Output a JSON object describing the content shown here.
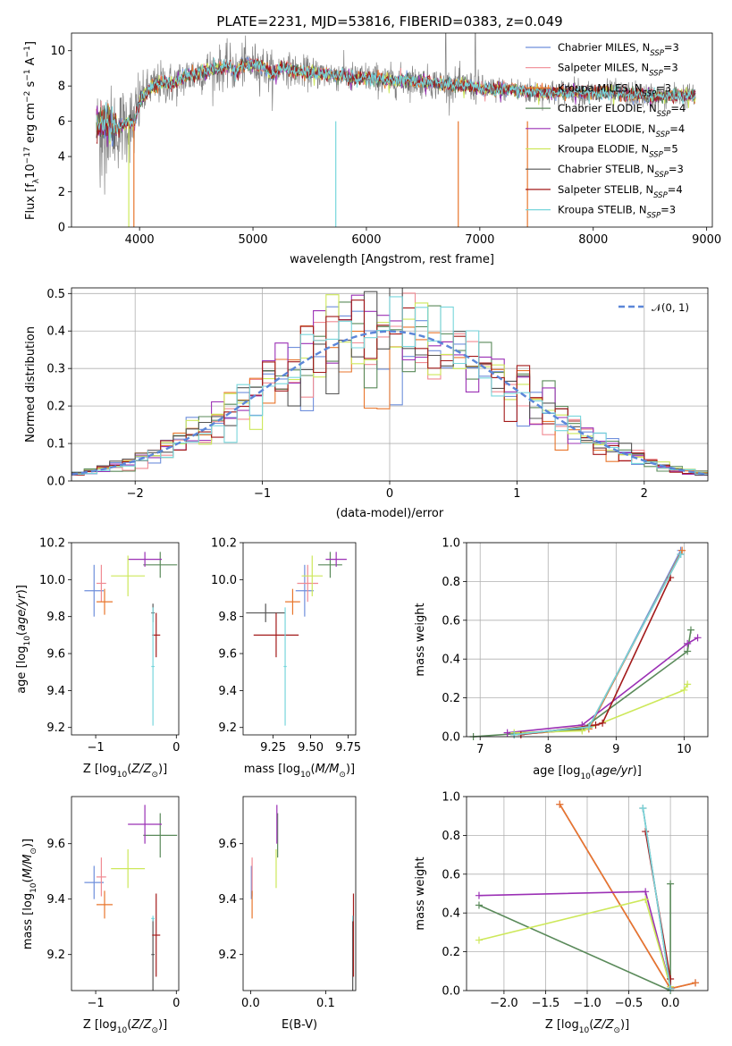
{
  "figure_title": "PLATE=2231, MJD=53816, FIBERID=0383, z=0.049",
  "model_colors": {
    "Chabrier MILES": "#6f8fdc",
    "Salpeter MILES": "#f08a92",
    "Kroupa MILES": "#e8762c",
    "Chabrier ELODIE": "#5a8a5a",
    "Salpeter ELODIE": "#9b30b5",
    "Kroupa ELODIE": "#cde85a",
    "Chabrier STELIB": "#555555",
    "Salpeter STELIB": "#a31a1a",
    "Kroupa STELIB": "#78d6dc",
    "Data spectrum": "#808080"
  },
  "chart_data": [
    {
      "id": "spectrum",
      "type": "line",
      "title": "PLATE=2231, MJD=53816, FIBERID=0383, z=0.049",
      "xlabel": "wavelength [Angstrom, rest frame]",
      "ylabel": "Flux [f_λ 10^-17 erg cm^-2 s^-1 A^-1]",
      "xlim": [
        3400,
        9050
      ],
      "ylim": [
        0,
        11
      ],
      "xticks": [
        4000,
        5000,
        6000,
        7000,
        8000,
        9000
      ],
      "yticks": [
        0,
        2,
        4,
        6,
        8,
        10
      ],
      "grid": false,
      "legend_position": "top-right",
      "legend": [
        {
          "label": "Chabrier MILES, N",
          "sub": "SSP",
          "tail": "=3"
        },
        {
          "label": "Salpeter MILES, N",
          "sub": "SSP",
          "tail": "=3"
        },
        {
          "label": "Kroupa MILES, N",
          "sub": "SSP",
          "tail": "=3"
        },
        {
          "label": "Chabrier ELODIE, N",
          "sub": "SSP",
          "tail": "=4"
        },
        {
          "label": "Salpeter ELODIE, N",
          "sub": "SSP",
          "tail": "=4"
        },
        {
          "label": "Kroupa ELODIE, N",
          "sub": "SSP",
          "tail": "=5"
        },
        {
          "label": "Chabrier STELIB, N",
          "sub": "SSP",
          "tail": "=3"
        },
        {
          "label": "Salpeter STELIB, N",
          "sub": "SSP",
          "tail": "=4"
        },
        {
          "label": "Kroupa STELIB, N",
          "sub": "SSP",
          "tail": "=3"
        }
      ],
      "continuum_points": [
        [
          3620,
          5.7
        ],
        [
          3700,
          6.0
        ],
        [
          3800,
          5.5
        ],
        [
          3900,
          6.0
        ],
        [
          3950,
          5.8
        ],
        [
          4000,
          7.2
        ],
        [
          4100,
          7.9
        ],
        [
          4200,
          8.2
        ],
        [
          4300,
          8.1
        ],
        [
          4400,
          8.5
        ],
        [
          4500,
          8.7
        ],
        [
          4600,
          8.9
        ],
        [
          4700,
          9.0
        ],
        [
          4800,
          9.1
        ],
        [
          4860,
          8.7
        ],
        [
          4900,
          9.2
        ],
        [
          5000,
          9.2
        ],
        [
          5100,
          9.1
        ],
        [
          5175,
          8.6
        ],
        [
          5250,
          9.1
        ],
        [
          5400,
          8.8
        ],
        [
          5600,
          8.7
        ],
        [
          5800,
          8.6
        ],
        [
          5900,
          8.4
        ],
        [
          6000,
          8.5
        ],
        [
          6200,
          8.3
        ],
        [
          6400,
          8.3
        ],
        [
          6563,
          8.2
        ],
        [
          6700,
          8.1
        ],
        [
          6900,
          8.0
        ],
        [
          7100,
          7.8
        ],
        [
          7300,
          7.8
        ],
        [
          7400,
          7.7
        ],
        [
          7600,
          7.6
        ],
        [
          7800,
          7.7
        ],
        [
          8000,
          7.6
        ],
        [
          8200,
          7.6
        ],
        [
          8400,
          7.5
        ],
        [
          8600,
          7.4
        ],
        [
          8800,
          7.5
        ],
        [
          8900,
          7.4
        ]
      ],
      "model_range_angstrom": [
        3620,
        8900
      ],
      "data_range_angstrom": [
        3620,
        8900
      ]
    },
    {
      "id": "residuals",
      "type": "line",
      "xlabel": "(data-model)/error",
      "ylabel": "Normed distribution",
      "xlim": [
        -2.5,
        2.5
      ],
      "ylim": [
        0,
        0.515
      ],
      "xticks": [
        -2,
        -1,
        0,
        1,
        2
      ],
      "yticks": [
        0.0,
        0.1,
        0.2,
        0.3,
        0.4,
        0.5
      ],
      "grid": true,
      "legend_position": "top-right",
      "legend": [
        {
          "label": "𝒩(0, 1)",
          "style": "dashed",
          "color": "#5b86d8"
        }
      ],
      "histogram_bin_edges_range": [
        -2.5,
        2.5
      ],
      "histogram_bin_width": 0.1,
      "reference_curve": "normal(0,1)"
    },
    {
      "id": "age-vs-Z",
      "type": "scatter",
      "xlabel": "Z [log10(Z/Z⊙)]",
      "ylabel": "age [log10(age/yr)]",
      "xlim": [
        -1.3,
        0.03
      ],
      "ylim": [
        9.16,
        10.2
      ],
      "xticks": [
        -1,
        0
      ],
      "yticks": [
        9.2,
        9.4,
        9.6,
        9.8,
        10.0,
        10.2
      ],
      "points": [
        {
          "model": "Chabrier MILES",
          "x": -1.02,
          "xerr": 0.12,
          "y": 9.94,
          "yerr": 0.14
        },
        {
          "model": "Salpeter MILES",
          "x": -0.93,
          "xerr": 0.06,
          "y": 9.98,
          "yerr": 0.1
        },
        {
          "model": "Kroupa MILES",
          "x": -0.89,
          "xerr": 0.1,
          "y": 9.88,
          "yerr": 0.07
        },
        {
          "model": "Chabrier ELODIE",
          "x": -0.2,
          "xerr": 0.21,
          "y": 10.08,
          "yerr": 0.07
        },
        {
          "model": "Salpeter ELODIE",
          "x": -0.39,
          "xerr": 0.21,
          "y": 10.11,
          "yerr": 0.04
        },
        {
          "model": "Kroupa ELODIE",
          "x": -0.6,
          "xerr": 0.21,
          "y": 10.02,
          "yerr": 0.11
        },
        {
          "model": "Chabrier STELIB",
          "x": -0.29,
          "xerr": 0.02,
          "y": 9.82,
          "yerr": 0.05
        },
        {
          "model": "Salpeter STELIB",
          "x": -0.25,
          "xerr": 0.05,
          "y": 9.7,
          "yerr": 0.12
        },
        {
          "model": "Kroupa STELIB",
          "x": -0.29,
          "xerr": 0.02,
          "y": 9.53,
          "yerr": 0.32
        }
      ]
    },
    {
      "id": "age-vs-mass",
      "type": "scatter",
      "xlabel": "mass [log10(M/M⊙)]",
      "ylabel": "",
      "xlim": [
        9.05,
        9.8
      ],
      "ylim": [
        9.16,
        10.2
      ],
      "xticks": [
        9.25,
        9.5,
        9.75
      ],
      "yticks": [
        9.2,
        9.4,
        9.6,
        9.8,
        10.0,
        10.2
      ],
      "points": [
        {
          "model": "Chabrier MILES",
          "x": 9.46,
          "xerr": 0.06,
          "y": 9.94,
          "yerr": 0.14
        },
        {
          "model": "Salpeter MILES",
          "x": 9.48,
          "xerr": 0.07,
          "y": 9.98,
          "yerr": 0.1
        },
        {
          "model": "Kroupa MILES",
          "x": 9.38,
          "xerr": 0.05,
          "y": 9.88,
          "yerr": 0.07
        },
        {
          "model": "Chabrier ELODIE",
          "x": 9.63,
          "xerr": 0.08,
          "y": 10.08,
          "yerr": 0.07
        },
        {
          "model": "Salpeter ELODIE",
          "x": 9.67,
          "xerr": 0.07,
          "y": 10.11,
          "yerr": 0.04
        },
        {
          "model": "Kroupa ELODIE",
          "x": 9.51,
          "xerr": 0.07,
          "y": 10.02,
          "yerr": 0.11
        },
        {
          "model": "Chabrier STELIB",
          "x": 9.2,
          "xerr": 0.13,
          "y": 9.82,
          "yerr": 0.05
        },
        {
          "model": "Salpeter STELIB",
          "x": 9.27,
          "xerr": 0.15,
          "y": 9.7,
          "yerr": 0.12
        },
        {
          "model": "Kroupa STELIB",
          "x": 9.33,
          "xerr": 0.01,
          "y": 9.53,
          "yerr": 0.32
        }
      ]
    },
    {
      "id": "mass-weight-vs-age",
      "type": "line",
      "xlabel": "age  [log10(age/yr)]",
      "ylabel": "mass weight",
      "xlim": [
        6.8,
        10.35
      ],
      "ylim": [
        0,
        1.0
      ],
      "xticks": [
        7,
        8,
        9,
        10
      ],
      "yticks": [
        0.0,
        0.2,
        0.4,
        0.6,
        0.8,
        1.0
      ],
      "grid": true,
      "series": [
        {
          "model": "Chabrier MILES",
          "x": [
            7.5,
            8.6,
            9.95
          ],
          "y": [
            0.01,
            0.04,
            0.96
          ]
        },
        {
          "model": "Salpeter MILES",
          "x": [
            7.5,
            8.6,
            9.97
          ],
          "y": [
            0.01,
            0.04,
            0.96
          ]
        },
        {
          "model": "Kroupa MILES",
          "x": [
            7.5,
            8.6,
            9.97
          ],
          "y": [
            0.01,
            0.04,
            0.96
          ]
        },
        {
          "model": "Chabrier ELODIE",
          "x": [
            6.9,
            8.5,
            10.05,
            10.1
          ],
          "y": [
            0.0,
            0.04,
            0.44,
            0.55
          ]
        },
        {
          "model": "Salpeter ELODIE",
          "x": [
            7.4,
            8.5,
            10.05,
            10.2
          ],
          "y": [
            0.02,
            0.06,
            0.48,
            0.51
          ]
        },
        {
          "model": "Kroupa ELODIE",
          "x": [
            7.5,
            8.5,
            10.0,
            10.05
          ],
          "y": [
            0.02,
            0.03,
            0.24,
            0.27
          ]
        },
        {
          "model": "Chabrier STELIB",
          "x": [
            7.5,
            8.6,
            9.95
          ],
          "y": [
            0.01,
            0.05,
            0.94
          ]
        },
        {
          "model": "Salpeter STELIB",
          "x": [
            7.6,
            8.7,
            8.8,
            9.8
          ],
          "y": [
            0.01,
            0.06,
            0.07,
            0.82
          ]
        },
        {
          "model": "Kroupa STELIB",
          "x": [
            7.5,
            8.6,
            9.95
          ],
          "y": [
            0.01,
            0.05,
            0.94
          ]
        }
      ]
    },
    {
      "id": "mass-vs-Z",
      "type": "scatter",
      "xlabel": "Z [log10(Z/Z⊙)]",
      "ylabel": "mass [log10(M/M⊙)]",
      "xlim": [
        -1.3,
        0.03
      ],
      "ylim": [
        9.07,
        9.77
      ],
      "xticks": [
        -1,
        0
      ],
      "yticks": [
        9.2,
        9.4,
        9.6
      ],
      "points": [
        {
          "model": "Chabrier MILES",
          "x": -1.02,
          "xerr": 0.12,
          "y": 9.46,
          "yerr": 0.06
        },
        {
          "model": "Salpeter MILES",
          "x": -0.93,
          "xerr": 0.06,
          "y": 9.48,
          "yerr": 0.07
        },
        {
          "model": "Kroupa MILES",
          "x": -0.89,
          "xerr": 0.1,
          "y": 9.38,
          "yerr": 0.05
        },
        {
          "model": "Chabrier ELODIE",
          "x": -0.2,
          "xerr": 0.21,
          "y": 9.63,
          "yerr": 0.08
        },
        {
          "model": "Salpeter ELODIE",
          "x": -0.39,
          "xerr": 0.21,
          "y": 9.67,
          "yerr": 0.07
        },
        {
          "model": "Kroupa ELODIE",
          "x": -0.6,
          "xerr": 0.21,
          "y": 9.51,
          "yerr": 0.07
        },
        {
          "model": "Chabrier STELIB",
          "x": -0.29,
          "xerr": 0.02,
          "y": 9.2,
          "yerr": 0.13
        },
        {
          "model": "Salpeter STELIB",
          "x": -0.25,
          "xerr": 0.05,
          "y": 9.27,
          "yerr": 0.15
        },
        {
          "model": "Kroupa STELIB",
          "x": -0.29,
          "xerr": 0.02,
          "y": 9.33,
          "yerr": 0.01
        }
      ]
    },
    {
      "id": "mass-vs-ebv",
      "type": "scatter",
      "xlabel": "E(B-V)",
      "ylabel": "",
      "xlim": [
        -0.01,
        0.14
      ],
      "ylim": [
        9.07,
        9.77
      ],
      "xticks": [
        0.0,
        0.1
      ],
      "yticks": [
        9.2,
        9.4,
        9.6
      ],
      "points": [
        {
          "model": "Chabrier MILES",
          "x": 0.001,
          "y": 9.46,
          "yerr": 0.06
        },
        {
          "model": "Salpeter MILES",
          "x": 0.002,
          "y": 9.48,
          "yerr": 0.07
        },
        {
          "model": "Kroupa MILES",
          "x": 0.002,
          "y": 9.38,
          "yerr": 0.05
        },
        {
          "model": "Chabrier ELODIE",
          "x": 0.036,
          "y": 9.63,
          "yerr": 0.08
        },
        {
          "model": "Salpeter ELODIE",
          "x": 0.035,
          "y": 9.67,
          "yerr": 0.07
        },
        {
          "model": "Kroupa ELODIE",
          "x": 0.034,
          "y": 9.51,
          "yerr": 0.07
        },
        {
          "model": "Chabrier STELIB",
          "x": 0.136,
          "y": 9.2,
          "yerr": 0.13
        },
        {
          "model": "Salpeter STELIB",
          "x": 0.137,
          "y": 9.27,
          "yerr": 0.15
        },
        {
          "model": "Kroupa STELIB",
          "x": 0.136,
          "y": 9.33,
          "yerr": 0.01
        }
      ]
    },
    {
      "id": "mass-weight-vs-Z",
      "type": "line",
      "xlabel": "Z [log10(Z/Z⊙)]",
      "ylabel": "mass weight",
      "xlim": [
        -2.45,
        0.45
      ],
      "ylim": [
        0,
        1.0
      ],
      "xticks": [
        -2.0,
        -1.5,
        -1.0,
        -0.5,
        0.0
      ],
      "yticks": [
        0.0,
        0.2,
        0.4,
        0.6,
        0.8,
        1.0
      ],
      "grid": true,
      "series": [
        {
          "model": "Chabrier MILES",
          "x": [
            -1.33,
            0.0,
            0.3
          ],
          "y": [
            0.96,
            0.01,
            0.04
          ]
        },
        {
          "model": "Salpeter MILES",
          "x": [
            -1.33,
            0.0,
            0.3
          ],
          "y": [
            0.96,
            0.01,
            0.04
          ]
        },
        {
          "model": "Kroupa MILES",
          "x": [
            -1.33,
            0.0,
            0.3
          ],
          "y": [
            0.96,
            0.01,
            0.04
          ]
        },
        {
          "model": "Chabrier ELODIE",
          "x": [
            -2.3,
            0.0,
            0.0
          ],
          "y": [
            0.44,
            0.0,
            0.55
          ]
        },
        {
          "model": "Salpeter ELODIE",
          "x": [
            -2.3,
            -0.3,
            0.0
          ],
          "y": [
            0.49,
            0.51,
            0.02
          ]
        },
        {
          "model": "Kroupa ELODIE",
          "x": [
            -2.3,
            -0.3,
            0.0
          ],
          "y": [
            0.26,
            0.47,
            0.02
          ]
        },
        {
          "model": "Chabrier STELIB",
          "x": [
            -0.33,
            0.0
          ],
          "y": [
            0.94,
            0.01
          ]
        },
        {
          "model": "Salpeter STELIB",
          "x": [
            -0.3,
            0.0,
            0.0
          ],
          "y": [
            0.82,
            0.06,
            0.01
          ]
        },
        {
          "model": "Kroupa STELIB",
          "x": [
            -0.33,
            0.0
          ],
          "y": [
            0.94,
            0.01
          ]
        }
      ]
    }
  ]
}
